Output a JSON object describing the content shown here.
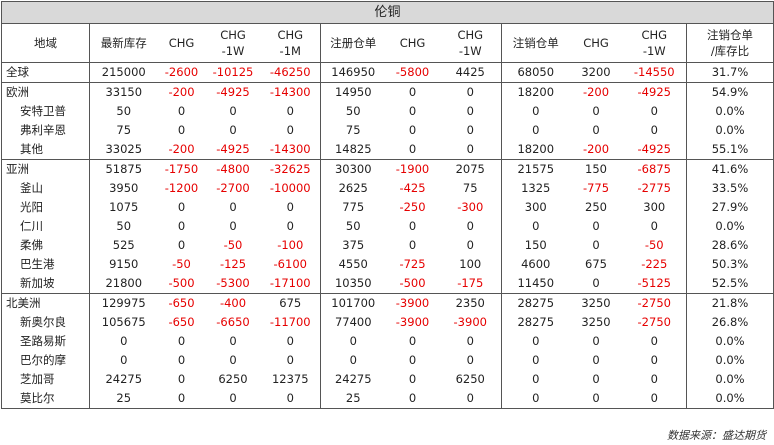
{
  "title": "伦铜",
  "headers": [
    "地域",
    "最新库存",
    "CHG",
    "CHG\n-1W",
    "CHG\n-1M",
    "注册仓单",
    "CHG",
    "CHG\n-1W",
    "注销仓单",
    "CHG",
    "CHG\n-1W",
    "注销仓单\n/库存比"
  ],
  "rows": [
    {
      "name": "全球",
      "sub": false,
      "region": true,
      "cells": [
        "215000",
        "-2600",
        "-10125",
        "-46250",
        "146950",
        "-5800",
        "4425",
        "68050",
        "3200",
        "-14550",
        "31.7%"
      ]
    },
    {
      "name": "欧洲",
      "sub": false,
      "region": true,
      "cells": [
        "33150",
        "-200",
        "-4925",
        "-14300",
        "14950",
        "0",
        "0",
        "18200",
        "-200",
        "-4925",
        "54.9%"
      ]
    },
    {
      "name": "安特卫普",
      "sub": true,
      "region": false,
      "cells": [
        "50",
        "0",
        "0",
        "0",
        "50",
        "0",
        "0",
        "0",
        "0",
        "0",
        "0.0%"
      ]
    },
    {
      "name": "弗利辛恩",
      "sub": true,
      "region": false,
      "cells": [
        "75",
        "0",
        "0",
        "0",
        "75",
        "0",
        "0",
        "0",
        "0",
        "0",
        "0.0%"
      ]
    },
    {
      "name": "其他",
      "sub": true,
      "region": false,
      "cells": [
        "33025",
        "-200",
        "-4925",
        "-14300",
        "14825",
        "0",
        "0",
        "18200",
        "-200",
        "-4925",
        "55.1%"
      ]
    },
    {
      "name": "亚洲",
      "sub": false,
      "region": true,
      "cells": [
        "51875",
        "-1750",
        "-4800",
        "-32625",
        "30300",
        "-1900",
        "2075",
        "21575",
        "150",
        "-6875",
        "41.6%"
      ]
    },
    {
      "name": "釜山",
      "sub": true,
      "region": false,
      "cells": [
        "3950",
        "-1200",
        "-2700",
        "-10000",
        "2625",
        "-425",
        "75",
        "1325",
        "-775",
        "-2775",
        "33.5%"
      ]
    },
    {
      "name": "光阳",
      "sub": true,
      "region": false,
      "cells": [
        "1075",
        "0",
        "0",
        "0",
        "775",
        "-250",
        "-300",
        "300",
        "250",
        "300",
        "27.9%"
      ]
    },
    {
      "name": "仁川",
      "sub": true,
      "region": false,
      "cells": [
        "50",
        "0",
        "0",
        "0",
        "50",
        "0",
        "0",
        "0",
        "0",
        "0",
        "0.0%"
      ]
    },
    {
      "name": "柔佛",
      "sub": true,
      "region": false,
      "cells": [
        "525",
        "0",
        "-50",
        "-100",
        "375",
        "0",
        "0",
        "150",
        "0",
        "-50",
        "28.6%"
      ]
    },
    {
      "name": "巴生港",
      "sub": true,
      "region": false,
      "cells": [
        "9150",
        "-50",
        "-125",
        "-6100",
        "4550",
        "-725",
        "100",
        "4600",
        "675",
        "-225",
        "50.3%"
      ]
    },
    {
      "name": "新加坡",
      "sub": true,
      "region": false,
      "cells": [
        "21800",
        "-500",
        "-5300",
        "-17100",
        "10350",
        "-500",
        "-175",
        "11450",
        "0",
        "-5125",
        "52.5%"
      ]
    },
    {
      "name": "北美洲",
      "sub": false,
      "region": true,
      "cells": [
        "129975",
        "-650",
        "-400",
        "675",
        "101700",
        "-3900",
        "2350",
        "28275",
        "3250",
        "-2750",
        "21.8%"
      ]
    },
    {
      "name": "新奥尔良",
      "sub": true,
      "region": false,
      "cells": [
        "105675",
        "-650",
        "-6650",
        "-11700",
        "77400",
        "-3900",
        "-3900",
        "28275",
        "3250",
        "-2750",
        "26.8%"
      ]
    },
    {
      "name": "圣路易斯",
      "sub": true,
      "region": false,
      "cells": [
        "0",
        "0",
        "0",
        "0",
        "0",
        "0",
        "0",
        "0",
        "0",
        "0",
        "0.0%"
      ]
    },
    {
      "name": "巴尔的摩",
      "sub": true,
      "region": false,
      "cells": [
        "0",
        "0",
        "0",
        "0",
        "0",
        "0",
        "0",
        "0",
        "0",
        "0",
        "0.0%"
      ]
    },
    {
      "name": "芝加哥",
      "sub": true,
      "region": false,
      "cells": [
        "24275",
        "0",
        "6250",
        "12375",
        "24275",
        "0",
        "6250",
        "0",
        "0",
        "0",
        "0.0%"
      ]
    },
    {
      "name": "莫比尔",
      "sub": true,
      "region": false,
      "cells": [
        "25",
        "0",
        "0",
        "0",
        "25",
        "0",
        "0",
        "0",
        "0",
        "0",
        "0.0%"
      ]
    }
  ],
  "source": "数据来源：盛达期货",
  "colors": {
    "negative": "#e60000",
    "title_bg": "#d9d9d9",
    "rule": "#555555"
  }
}
